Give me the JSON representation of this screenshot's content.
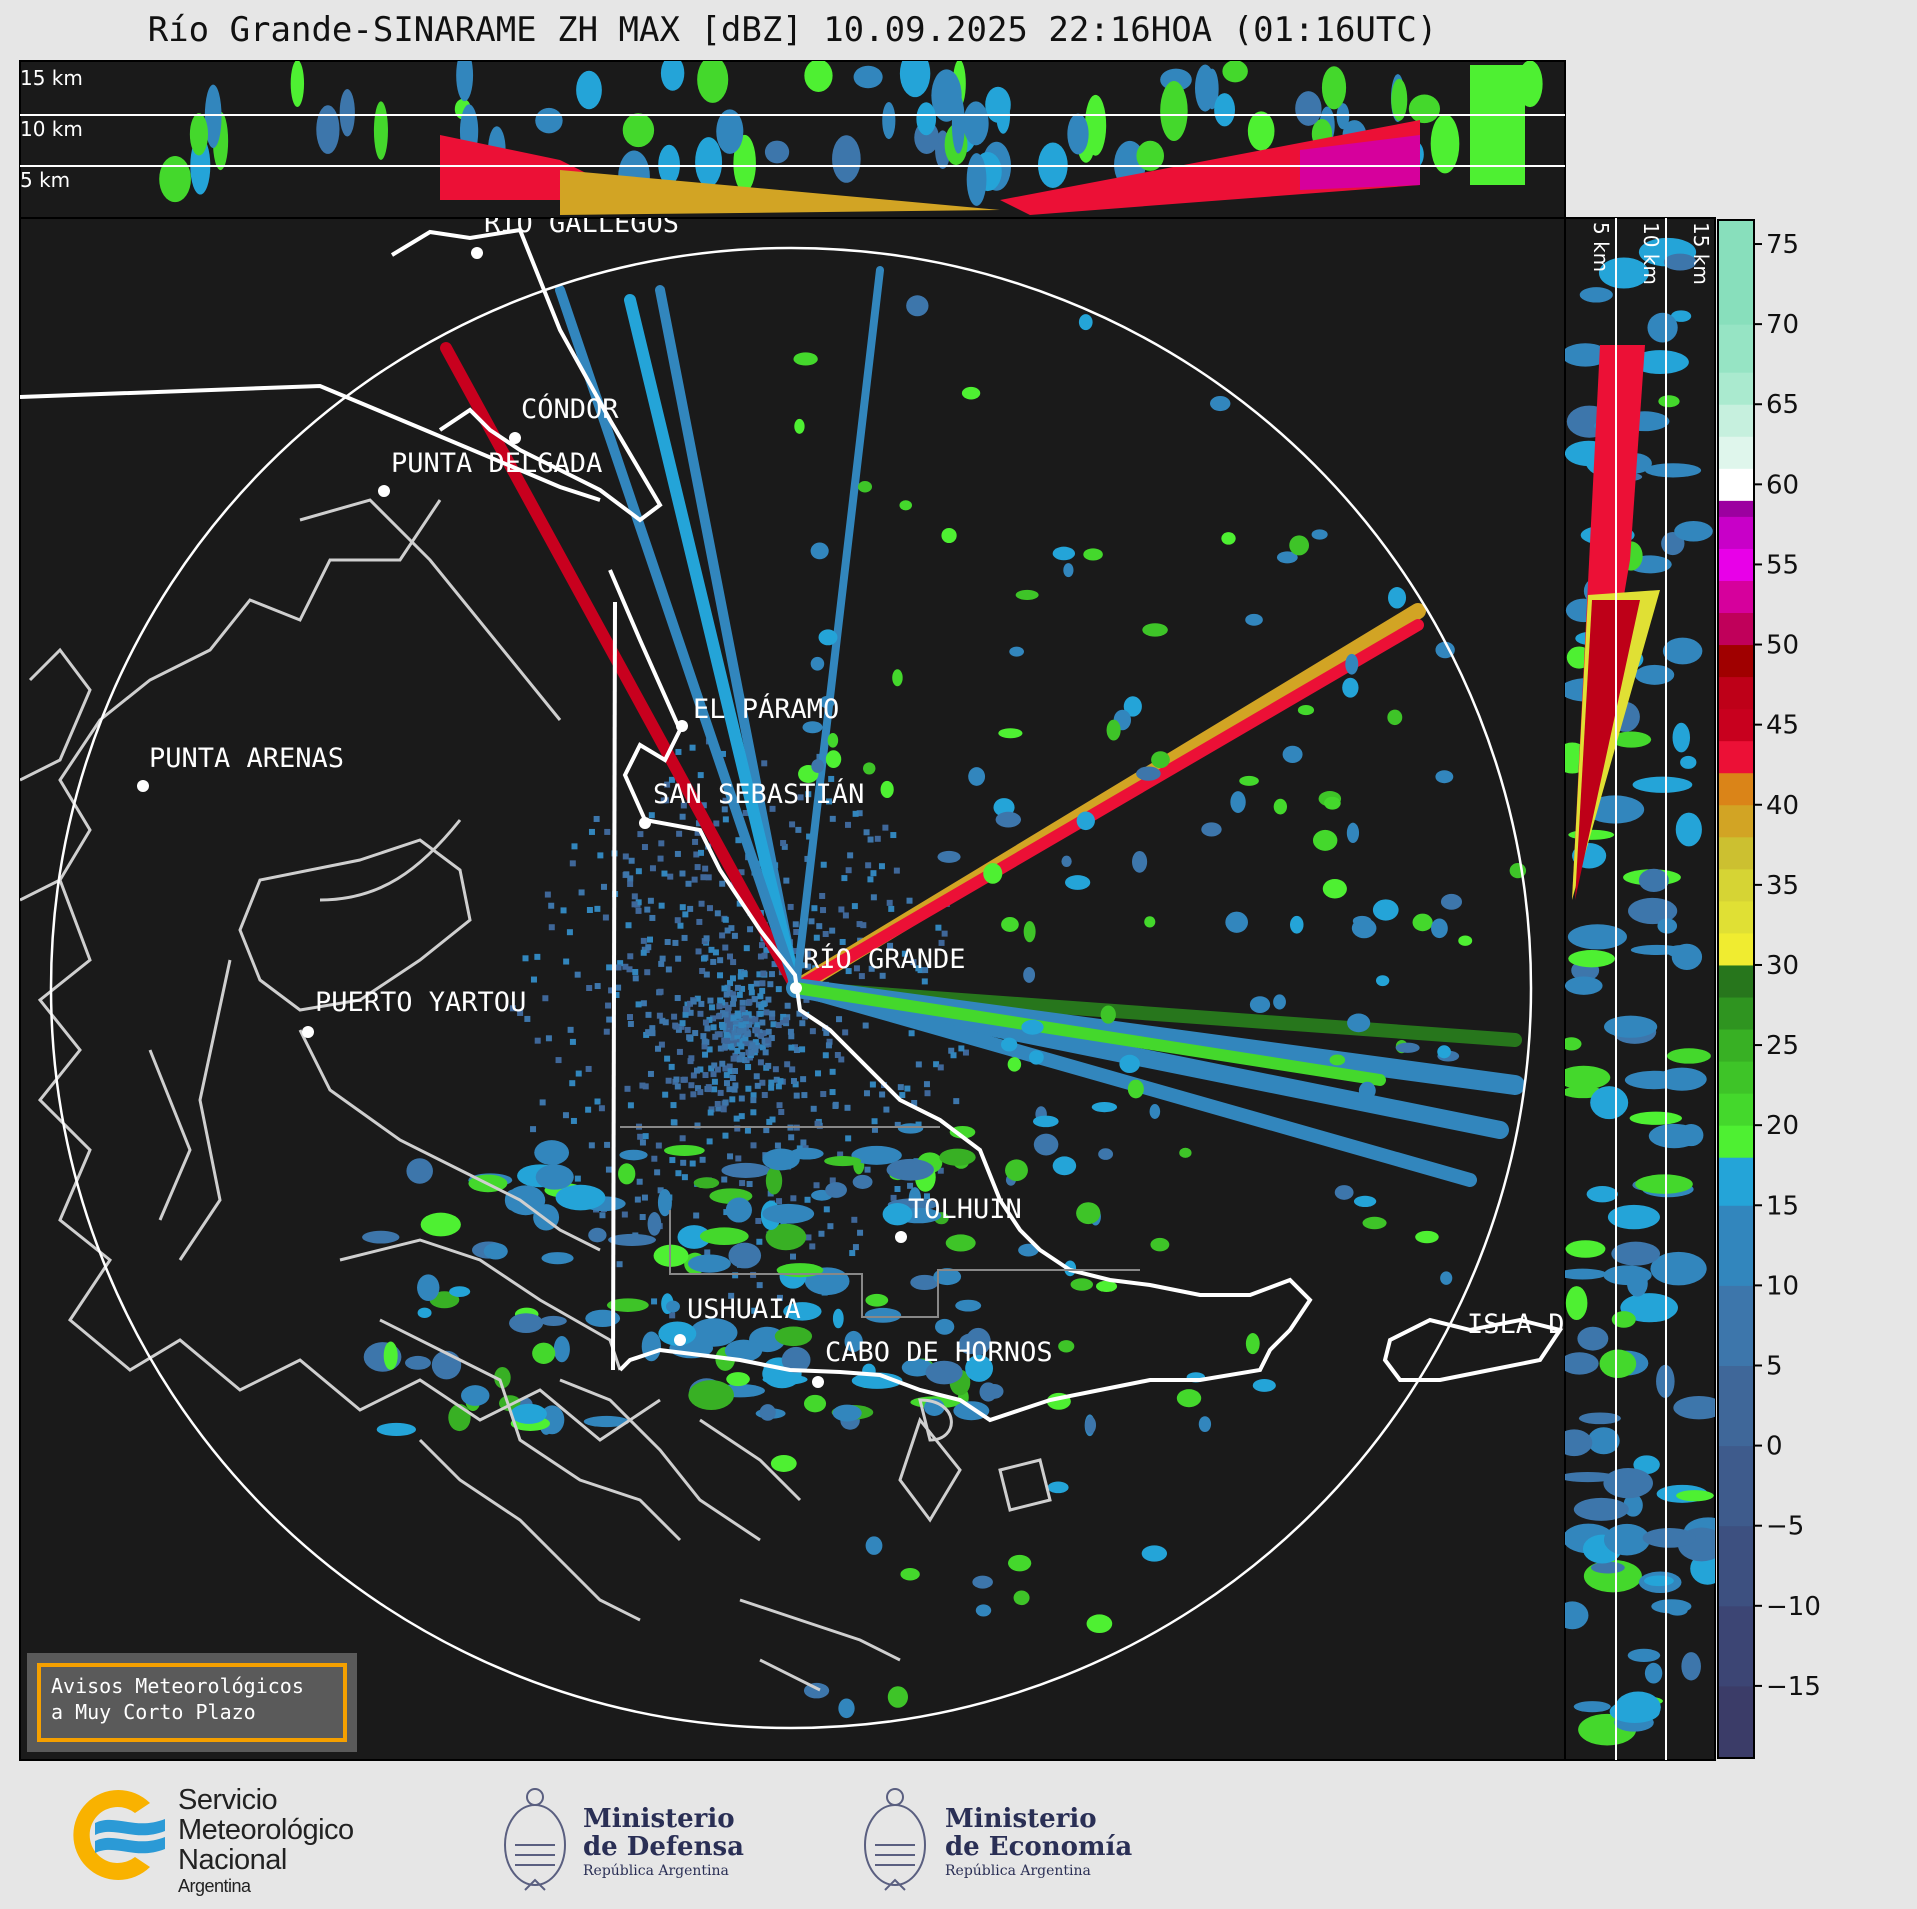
{
  "title": "Río Grande-SINARAME ZH MAX [dBZ] 10.09.2025 22:16HOA (01:16UTC)",
  "top_panel": {
    "labels": [
      "15 km",
      "10 km",
      "5 km"
    ]
  },
  "side_panel": {
    "labels": [
      "5 km",
      "10 km",
      "15 km"
    ]
  },
  "cities": [
    {
      "name": "RÍO GALLEGOS"
    },
    {
      "name": "CÓNDOR"
    },
    {
      "name": "PUNTA DELGADA"
    },
    {
      "name": "EL PÁRAMO"
    },
    {
      "name": "PUNTA ARENAS"
    },
    {
      "name": "SAN SEBASTIÁN"
    },
    {
      "name": "RÍO GRANDE"
    },
    {
      "name": "PUERTO YARTOU"
    },
    {
      "name": "TOLHUIN"
    },
    {
      "name": "USHUAIA"
    },
    {
      "name": "CABO DE HORNOS"
    },
    {
      "name": "ISLA D"
    }
  ],
  "colorbar": {
    "unit": "dBZ",
    "range": [
      -19.5,
      76.5
    ],
    "ticks": [
      "75",
      "70",
      "65",
      "60",
      "55",
      "50",
      "45",
      "40",
      "35",
      "30",
      "25",
      "20",
      "15",
      "10",
      "5",
      "0",
      "−5",
      "−10",
      "−15"
    ],
    "bins": [
      [
        -19.5,
        -15,
        "#3b3c68"
      ],
      [
        -15,
        -10,
        "#3c4574"
      ],
      [
        -10,
        -5,
        "#3d5080"
      ],
      [
        -5,
        0,
        "#3e5b8c"
      ],
      [
        0,
        5,
        "#3f6799"
      ],
      [
        5,
        10,
        "#3d76ab"
      ],
      [
        10,
        15,
        "#3286bd"
      ],
      [
        15,
        18,
        "#24a4d8"
      ],
      [
        18,
        20,
        "#4ef032"
      ],
      [
        20,
        22,
        "#44d82c"
      ],
      [
        22,
        24,
        "#3ec428"
      ],
      [
        24,
        26,
        "#38b024"
      ],
      [
        26,
        28,
        "#2f9420"
      ],
      [
        28,
        30,
        "#27761c"
      ],
      [
        30,
        32,
        "#f0ec30"
      ],
      [
        32,
        34,
        "#e0e034"
      ],
      [
        34,
        36,
        "#d6d434"
      ],
      [
        36,
        38,
        "#ccc030"
      ],
      [
        38,
        40,
        "#d2a424"
      ],
      [
        40,
        42,
        "#da8418"
      ],
      [
        42,
        44,
        "#ec1036"
      ],
      [
        44,
        46,
        "#c8001e"
      ],
      [
        46,
        48,
        "#be0018"
      ],
      [
        48,
        50,
        "#a00000"
      ],
      [
        50,
        52,
        "#c0005a"
      ],
      [
        52,
        54,
        "#d6009c"
      ],
      [
        54,
        56,
        "#e800e8"
      ],
      [
        56,
        58,
        "#c800c8"
      ],
      [
        58,
        59,
        "#9c00a0"
      ],
      [
        59,
        61,
        "#ffffff"
      ],
      [
        61,
        63,
        "#dff6ec"
      ],
      [
        63,
        65,
        "#c6f0de"
      ],
      [
        65,
        67,
        "#aaeacf"
      ],
      [
        67,
        70,
        "#96e4c4"
      ],
      [
        70,
        76.5,
        "#88dfbc"
      ]
    ]
  },
  "avisos": {
    "line1": "Avisos Meteorológicos",
    "line2": "a Muy Corto Plazo"
  },
  "logos": {
    "smn": {
      "line1": "Servicio",
      "line2": "Meteorológico",
      "line3": "Nacional",
      "line4": "Argentina"
    },
    "defensa": {
      "line1": "Ministerio",
      "line2": "de Defensa",
      "line3": "República Argentina"
    },
    "economia": {
      "line1": "Ministerio",
      "line2": "de Economía",
      "line3": "República Argentina"
    }
  },
  "colors": {
    "background": "#1a1a1a",
    "coast": "#ffffff",
    "coast_secondary": "#cfcfcf",
    "accent": "#f5a000"
  }
}
